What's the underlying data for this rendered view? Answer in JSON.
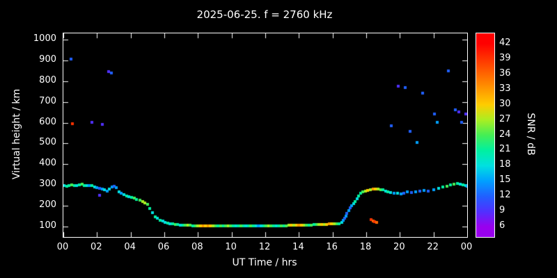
{
  "figure": {
    "background": "#000000",
    "text_color": "#ffffff",
    "plot_border_color": "#ffffff"
  },
  "chart_data": {
    "type": "scatter",
    "title": "2025-06-25. f = 2760 kHz",
    "xlabel": "UT Time / hrs",
    "ylabel": "Virtual height / km",
    "colorbar_label": "SNR / dB",
    "xlim": [
      0,
      24
    ],
    "ylim": [
      50,
      1030
    ],
    "grid": false,
    "xticks": {
      "values": [
        0,
        2,
        4,
        6,
        8,
        10,
        12,
        14,
        16,
        18,
        20,
        22,
        24
      ],
      "labels": [
        "00",
        "02",
        "04",
        "06",
        "08",
        "10",
        "12",
        "14",
        "16",
        "18",
        "20",
        "22",
        "00"
      ]
    },
    "yticks": [
      100,
      200,
      300,
      400,
      500,
      600,
      700,
      800,
      900,
      1000
    ],
    "colorbar": {
      "min": 6,
      "max": 42,
      "domain_top": 44,
      "domain_bottom": 4,
      "ticks": [
        42,
        39,
        36,
        33,
        30,
        27,
        24,
        21,
        18,
        15,
        12,
        9,
        6
      ],
      "stops": [
        {
          "v": 6,
          "c": "#9900ee"
        },
        {
          "v": 9,
          "c": "#5030ff"
        },
        {
          "v": 12,
          "c": "#2060ff"
        },
        {
          "v": 15,
          "c": "#00a0ff"
        },
        {
          "v": 18,
          "c": "#00e0e0"
        },
        {
          "v": 21,
          "c": "#00f0a0"
        },
        {
          "v": 24,
          "c": "#44ee55"
        },
        {
          "v": 27,
          "c": "#aaee22"
        },
        {
          "v": 30,
          "c": "#ffcc00"
        },
        {
          "v": 33,
          "c": "#ff9900"
        },
        {
          "v": 36,
          "c": "#ff6600"
        },
        {
          "v": 39,
          "c": "#ff3300"
        },
        {
          "v": 42,
          "c": "#ff0000"
        }
      ]
    },
    "points": [
      [
        0.05,
        296,
        18
      ],
      [
        0.2,
        294,
        21
      ],
      [
        0.35,
        298,
        21
      ],
      [
        0.5,
        300,
        24
      ],
      [
        0.65,
        298,
        21
      ],
      [
        0.8,
        296,
        18
      ],
      [
        0.95,
        301,
        21
      ],
      [
        1.1,
        303,
        24
      ],
      [
        1.25,
        299,
        21
      ],
      [
        1.4,
        296,
        18
      ],
      [
        1.55,
        299,
        15
      ],
      [
        1.7,
        297,
        21
      ],
      [
        1.85,
        292,
        18
      ],
      [
        2.0,
        288,
        15
      ],
      [
        2.15,
        284,
        12
      ],
      [
        2.3,
        280,
        15
      ],
      [
        2.45,
        277,
        18
      ],
      [
        2.6,
        272,
        15
      ],
      [
        2.75,
        281,
        18
      ],
      [
        2.9,
        290,
        15
      ],
      [
        3.0,
        294,
        12
      ],
      [
        3.15,
        287,
        15
      ],
      [
        3.3,
        268,
        18
      ],
      [
        3.45,
        261,
        15
      ],
      [
        3.6,
        253,
        18
      ],
      [
        3.75,
        248,
        21
      ],
      [
        3.9,
        244,
        18
      ],
      [
        4.05,
        240,
        21
      ],
      [
        4.2,
        236,
        24
      ],
      [
        4.35,
        232,
        21
      ],
      [
        4.55,
        228,
        24
      ],
      [
        4.7,
        221,
        27
      ],
      [
        4.85,
        214,
        27
      ],
      [
        5.0,
        206,
        24
      ],
      [
        5.15,
        186,
        21
      ],
      [
        5.3,
        166,
        18
      ],
      [
        5.45,
        148,
        21
      ],
      [
        5.6,
        139,
        18
      ],
      [
        5.75,
        131,
        21
      ],
      [
        5.9,
        126,
        18
      ],
      [
        6.05,
        121,
        18
      ],
      [
        6.2,
        116,
        21
      ],
      [
        6.35,
        113,
        18
      ],
      [
        6.5,
        112,
        21
      ],
      [
        6.65,
        110,
        24
      ],
      [
        6.8,
        110,
        21
      ],
      [
        6.95,
        108,
        18
      ],
      [
        7.1,
        108,
        21
      ],
      [
        7.25,
        107,
        24
      ],
      [
        7.4,
        106,
        27
      ],
      [
        7.55,
        106,
        24
      ],
      [
        7.7,
        105,
        21
      ],
      [
        7.85,
        105,
        24
      ],
      [
        8.0,
        105,
        27
      ],
      [
        8.15,
        104,
        30
      ],
      [
        8.3,
        104,
        33
      ],
      [
        8.45,
        104,
        30
      ],
      [
        8.6,
        103,
        33
      ],
      [
        8.75,
        103,
        30
      ],
      [
        8.9,
        103,
        27
      ],
      [
        9.05,
        103,
        24
      ],
      [
        9.2,
        103,
        21
      ],
      [
        9.35,
        102,
        24
      ],
      [
        9.5,
        102,
        21
      ],
      [
        9.65,
        102,
        24
      ],
      [
        9.8,
        102,
        27
      ],
      [
        9.95,
        102,
        24
      ],
      [
        10.1,
        102,
        21
      ],
      [
        10.25,
        102,
        18
      ],
      [
        10.4,
        102,
        21
      ],
      [
        10.55,
        102,
        24
      ],
      [
        10.7,
        102,
        21
      ],
      [
        10.85,
        102,
        18
      ],
      [
        11.0,
        102,
        21
      ],
      [
        11.15,
        102,
        24
      ],
      [
        11.3,
        102,
        21
      ],
      [
        11.45,
        103,
        18
      ],
      [
        11.6,
        103,
        15
      ],
      [
        11.75,
        103,
        18
      ],
      [
        11.9,
        103,
        21
      ],
      [
        12.05,
        104,
        24
      ],
      [
        12.2,
        104,
        27
      ],
      [
        12.35,
        104,
        24
      ],
      [
        12.5,
        104,
        21
      ],
      [
        12.65,
        105,
        18
      ],
      [
        12.8,
        105,
        21
      ],
      [
        12.95,
        105,
        24
      ],
      [
        13.1,
        105,
        21
      ],
      [
        13.25,
        105,
        24
      ],
      [
        13.4,
        106,
        27
      ],
      [
        13.55,
        106,
        30
      ],
      [
        13.7,
        106,
        27
      ],
      [
        13.85,
        106,
        30
      ],
      [
        14.0,
        107,
        33
      ],
      [
        14.15,
        107,
        30
      ],
      [
        14.3,
        107,
        27
      ],
      [
        14.45,
        108,
        24
      ],
      [
        14.6,
        108,
        21
      ],
      [
        14.75,
        108,
        24
      ],
      [
        14.9,
        109,
        21
      ],
      [
        15.05,
        109,
        24
      ],
      [
        15.2,
        110,
        27
      ],
      [
        15.35,
        110,
        30
      ],
      [
        15.5,
        111,
        27
      ],
      [
        15.65,
        111,
        30
      ],
      [
        15.8,
        112,
        33
      ],
      [
        15.95,
        112,
        30
      ],
      [
        16.1,
        113,
        27
      ],
      [
        16.25,
        114,
        24
      ],
      [
        16.4,
        115,
        21
      ],
      [
        16.55,
        121,
        18
      ],
      [
        16.62,
        129,
        15
      ],
      [
        16.7,
        139,
        12
      ],
      [
        16.78,
        151,
        15
      ],
      [
        16.85,
        163,
        12
      ],
      [
        16.95,
        176,
        15
      ],
      [
        17.05,
        189,
        12
      ],
      [
        17.15,
        202,
        15
      ],
      [
        17.25,
        212,
        18
      ],
      [
        17.35,
        222,
        21
      ],
      [
        17.45,
        233,
        18
      ],
      [
        17.55,
        246,
        21
      ],
      [
        17.65,
        262,
        21
      ],
      [
        17.8,
        268,
        24
      ],
      [
        17.95,
        272,
        27
      ],
      [
        18.1,
        275,
        30
      ],
      [
        18.25,
        278,
        27
      ],
      [
        18.4,
        280,
        33
      ],
      [
        18.55,
        282,
        30
      ],
      [
        18.7,
        280,
        27
      ],
      [
        18.85,
        278,
        24
      ],
      [
        19.0,
        276,
        21
      ],
      [
        19.15,
        272,
        18
      ],
      [
        19.3,
        268,
        21
      ],
      [
        19.45,
        265,
        18
      ],
      [
        19.65,
        262,
        15
      ],
      [
        19.85,
        260,
        18
      ],
      [
        20.05,
        258,
        15
      ],
      [
        20.25,
        262,
        12
      ],
      [
        20.45,
        268,
        15
      ],
      [
        20.7,
        265,
        12
      ],
      [
        20.95,
        268,
        15
      ],
      [
        21.2,
        272,
        12
      ],
      [
        21.45,
        275,
        15
      ],
      [
        21.7,
        272,
        12
      ],
      [
        22.0,
        278,
        15
      ],
      [
        22.3,
        285,
        18
      ],
      [
        22.55,
        290,
        21
      ],
      [
        22.8,
        295,
        24
      ],
      [
        23.0,
        300,
        21
      ],
      [
        23.2,
        305,
        24
      ],
      [
        23.4,
        308,
        21
      ],
      [
        23.6,
        305,
        18
      ],
      [
        23.75,
        302,
        21
      ],
      [
        23.9,
        298,
        18
      ],
      [
        24.0,
        295,
        15
      ],
      [
        18.3,
        132,
        39
      ],
      [
        18.4,
        128,
        36
      ],
      [
        18.5,
        124,
        39
      ],
      [
        18.6,
        121,
        36
      ],
      [
        0.45,
        905,
        12
      ],
      [
        0.55,
        595,
        39
      ],
      [
        1.7,
        601,
        9
      ],
      [
        2.3,
        592,
        9
      ],
      [
        2.15,
        252,
        9
      ],
      [
        2.7,
        845,
        9
      ],
      [
        2.85,
        839,
        12
      ],
      [
        19.5,
        585,
        12
      ],
      [
        19.9,
        776,
        9
      ],
      [
        20.3,
        768,
        12
      ],
      [
        20.6,
        558,
        12
      ],
      [
        21.0,
        506,
        15
      ],
      [
        21.35,
        743,
        12
      ],
      [
        22.05,
        641,
        12
      ],
      [
        22.2,
        601,
        15
      ],
      [
        22.9,
        848,
        12
      ],
      [
        23.3,
        661,
        12
      ],
      [
        23.5,
        653,
        9
      ],
      [
        23.65,
        601,
        12
      ],
      [
        23.9,
        641,
        9
      ]
    ]
  }
}
